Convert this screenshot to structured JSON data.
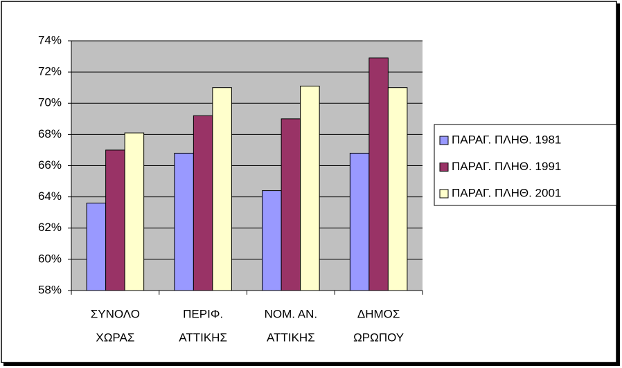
{
  "chart_data": {
    "type": "bar",
    "categories": [
      [
        "ΣΥΝΟΛΟ",
        "ΧΩΡΑΣ"
      ],
      [
        "ΠΕΡΙΦ.",
        "ΑΤΤΙΚΗΣ"
      ],
      [
        "ΝΟΜ. ΑΝ.",
        "ΑΤΤΙΚΗΣ"
      ],
      [
        "ΔΗΜΟΣ",
        "ΩΡΩΠΟΥ"
      ]
    ],
    "series": [
      {
        "name": "ΠΑΡΑΓ. ΠΛΗΘ. 1981",
        "color": "#9999ff",
        "values": [
          63.6,
          66.8,
          64.4,
          66.8
        ]
      },
      {
        "name": "ΠΑΡΑΓ. ΠΛΗΘ. 1991",
        "color": "#993366",
        "values": [
          67.0,
          69.2,
          69.0,
          72.9
        ]
      },
      {
        "name": "ΠΑΡΑΓ. ΠΛΗΘ. 2001",
        "color": "#ffffcc",
        "values": [
          68.1,
          71.0,
          71.1,
          71.0
        ]
      }
    ],
    "ylim": [
      58,
      74
    ],
    "yticks": [
      {
        "value": 58,
        "label": "58%"
      },
      {
        "value": 60,
        "label": "60%"
      },
      {
        "value": 62,
        "label": "62%"
      },
      {
        "value": 64,
        "label": "64%"
      },
      {
        "value": 66,
        "label": "66%"
      },
      {
        "value": 68,
        "label": "68%"
      },
      {
        "value": 70,
        "label": "70%"
      },
      {
        "value": 72,
        "label": "72%"
      },
      {
        "value": 74,
        "label": "74%"
      }
    ],
    "grid": true,
    "legend": "right",
    "plot_background": "#c0c0c0"
  }
}
